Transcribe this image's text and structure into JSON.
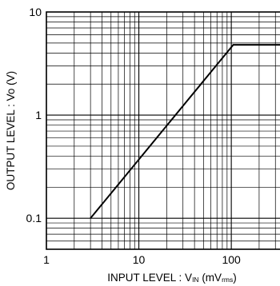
{
  "chart_data": {
    "type": "line",
    "x_scale": "log",
    "y_scale": "log",
    "xlim": [
      1,
      350
    ],
    "ylim": [
      0.05,
      10
    ],
    "grid": true,
    "x_ticks": [
      {
        "value": 1,
        "label": "1"
      },
      {
        "value": 10,
        "label": "10"
      },
      {
        "value": 100,
        "label": "100"
      }
    ],
    "y_ticks": [
      {
        "value": 0.1,
        "label": "0.1"
      },
      {
        "value": 1,
        "label": "1"
      },
      {
        "value": 10,
        "label": "10"
      }
    ],
    "xlabel": {
      "text": "INPUT LEVEL : V",
      "sub1": "IN",
      "mid": " (mV",
      "sub2": "rms",
      "end": ")"
    },
    "ylabel": "OUTPUT LEVEL : Vo (V)",
    "series": [
      {
        "x": [
          3,
          105,
          350
        ],
        "y": [
          0.1,
          4.8,
          4.8
        ]
      }
    ]
  }
}
